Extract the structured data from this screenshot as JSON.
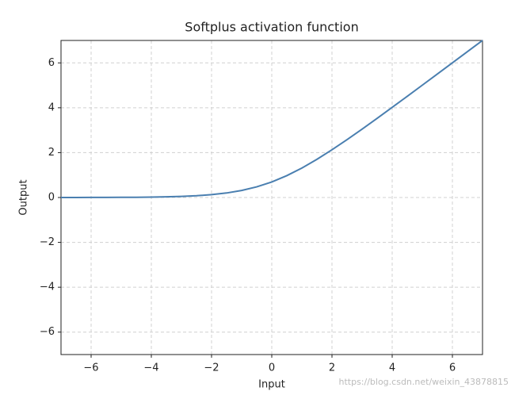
{
  "chart_data": {
    "type": "line",
    "title": "Softplus activation function",
    "x_label": "Input",
    "y_label": "Output",
    "x": [
      -7,
      -6.5,
      -6,
      -5.5,
      -5,
      -4.5,
      -4,
      -3.5,
      -3,
      -2.5,
      -2,
      -1.5,
      -1,
      -0.5,
      0,
      0.5,
      1,
      1.5,
      2,
      2.5,
      3,
      3.5,
      4,
      4.5,
      5,
      5.5,
      6,
      6.5,
      7
    ],
    "series": [
      {
        "name": "Softplus",
        "color": "#4a7fb0",
        "values": [
          0.0009,
          0.0015,
          0.0025,
          0.0041,
          0.0067,
          0.011,
          0.0181,
          0.0298,
          0.0486,
          0.0789,
          0.1269,
          0.2014,
          0.3133,
          0.4741,
          0.6931,
          0.9741,
          1.3133,
          1.7014,
          2.1269,
          2.5789,
          3.0486,
          3.5298,
          4.0181,
          4.511,
          5.0067,
          5.5041,
          6.0025,
          6.5015,
          7.0009
        ]
      }
    ],
    "xlim": [
      -7,
      7
    ],
    "ylim": [
      -7,
      7
    ],
    "xticks": [
      {
        "value": -6,
        "label": "−6"
      },
      {
        "value": -4,
        "label": "−4"
      },
      {
        "value": -2,
        "label": "−2"
      },
      0,
      2,
      4,
      6
    ],
    "yticks": [
      {
        "value": -6,
        "label": "−6"
      },
      {
        "value": -4,
        "label": "−4"
      },
      {
        "value": -2,
        "label": "−2"
      },
      0,
      2,
      4,
      6
    ],
    "grid": true,
    "watermark": "https://blog.csdn.net/weixin_43878815"
  }
}
